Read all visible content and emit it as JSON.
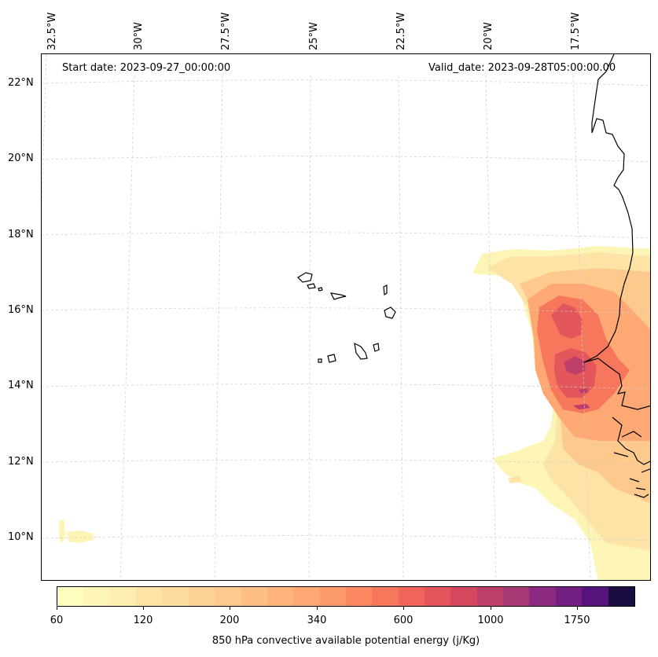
{
  "map": {
    "start_date": "Start date: 2023-09-27_00:00:00",
    "valid_date": "Valid_date: 2023-09-28T05:00:00.00",
    "lon_labels": [
      "32.5°W",
      "30°W",
      "27.5°W",
      "25°W",
      "22.5°W",
      "20°W",
      "17.5°W"
    ],
    "lat_labels": [
      "22°N",
      "20°N",
      "18°N",
      "16°N",
      "14°N",
      "12°N",
      "10°N"
    ],
    "islands": [
      "Santo Antão",
      "São Vicente",
      "São Nicolau",
      "Sal",
      "Boa Vista",
      "Maio",
      "Santiago",
      "Fogo",
      "Brava"
    ]
  },
  "colorbar": {
    "title": "850 hPa convective available potential energy (j/Kg)",
    "tick_labels": [
      "60",
      "120",
      "200",
      "340",
      "600",
      "1000",
      "1750"
    ],
    "colors": [
      "#fcfdbf",
      "#fcf5b6",
      "#fdedae",
      "#fde4a6",
      "#fedb9e",
      "#fed296",
      "#fec98d",
      "#febf84",
      "#feb37b",
      "#fea873",
      "#fd9a6a",
      "#fc8961",
      "#f7775c",
      "#ef6559",
      "#e3565b",
      "#d3475f",
      "#be3e6a",
      "#a63873",
      "#8c2981",
      "#721f81",
      "#56147d",
      "#1b0c41"
    ]
  },
  "colors": {
    "coastline": "#000000",
    "gridline": "#cccccc"
  }
}
